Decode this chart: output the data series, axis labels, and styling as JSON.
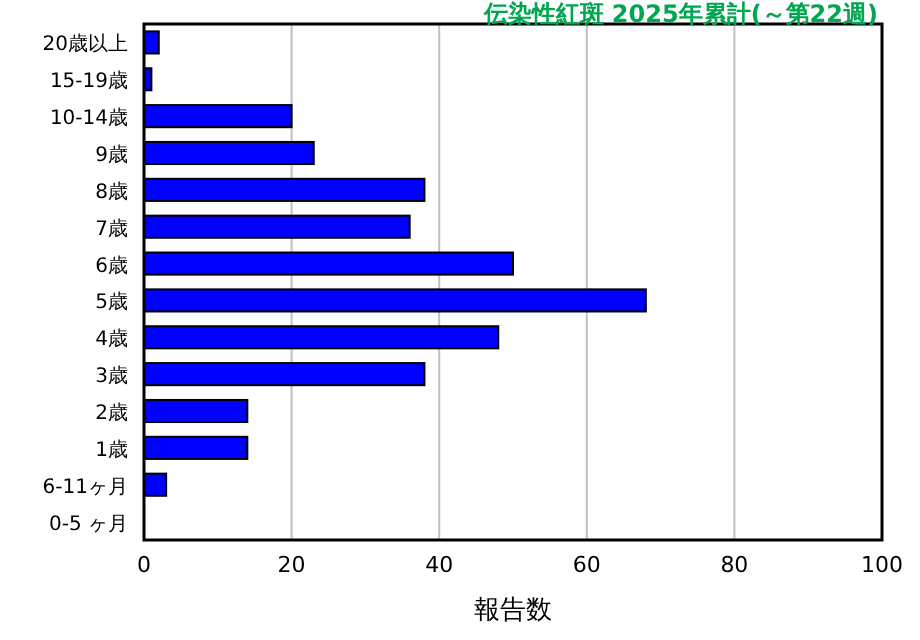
{
  "chart_data": {
    "type": "bar",
    "orientation": "horizontal",
    "title": "伝染性紅斑 2025年累計(～第22週)",
    "xlabel": "報告数",
    "categories": [
      "20歳以上",
      "15-19歳",
      "10-14歳",
      "9歳",
      "8歳",
      "7歳",
      "6歳",
      "5歳",
      "4歳",
      "3歳",
      "2歳",
      "1歳",
      "6-11ヶ月",
      "0-5 ヶ月"
    ],
    "values": [
      2,
      1,
      20,
      23,
      38,
      36,
      50,
      68,
      48,
      38,
      14,
      14,
      3,
      0
    ],
    "color": "#0000ff",
    "xlim": [
      0,
      100
    ],
    "xticks": [
      0,
      20,
      40,
      60,
      80,
      100
    ],
    "grid": "x"
  }
}
